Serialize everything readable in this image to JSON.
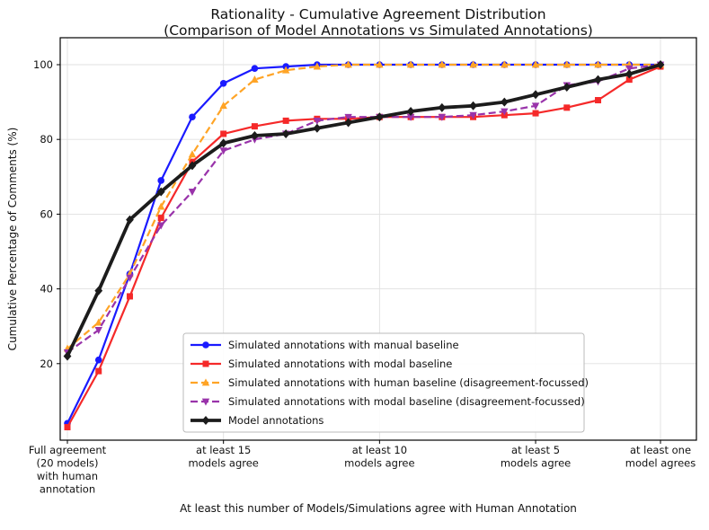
{
  "figure": {
    "title_line1": "Rationality - Cumulative Agreement Distribution",
    "title_line2": "(Comparison of Model Annotations vs Simulated Annotations)"
  },
  "axes": {
    "xlabel": "At least this number of Models/Simulations agree with Human Annotation",
    "ylabel": "Cumulative Percentage of Comments (%)",
    "yticks": [
      20,
      40,
      60,
      80,
      100
    ],
    "ylim": [
      0,
      105
    ],
    "grid": true,
    "xticks": [
      {
        "index": 0,
        "lines": [
          "Full agreement",
          "(20 models)",
          "with human",
          "annotation"
        ]
      },
      {
        "index": 5,
        "lines": [
          "at least 15",
          "models agree"
        ]
      },
      {
        "index": 10,
        "lines": [
          "at least 10",
          "models agree"
        ]
      },
      {
        "index": 15,
        "lines": [
          "at least 5",
          "models agree"
        ]
      },
      {
        "index": 19,
        "lines": [
          "at least one",
          "model agrees"
        ]
      }
    ]
  },
  "chart_data": {
    "type": "line",
    "x_meaning": "number of models/simulations agreeing with human annotation (cumulative, from 20 down to 1)",
    "x": [
      20,
      19,
      18,
      17,
      16,
      15,
      14,
      13,
      12,
      11,
      10,
      9,
      8,
      7,
      6,
      5,
      4,
      3,
      2,
      1
    ],
    "legend_position": "lower center-left inside axes",
    "series": [
      {
        "id": "manual-baseline",
        "name": "Simulated annotations with manual baseline",
        "color": "#1a1aff",
        "marker": "circle",
        "line_style": "solid",
        "line_width": 2.2,
        "values": [
          4,
          21,
          44,
          69,
          86,
          95,
          99,
          99.5,
          100,
          100,
          100,
          100,
          100,
          100,
          100,
          100,
          100,
          100,
          100,
          100
        ]
      },
      {
        "id": "modal-baseline",
        "name": "Simulated annotations with modal baseline",
        "color": "#f52929",
        "marker": "square",
        "line_style": "solid",
        "line_width": 2.2,
        "values": [
          3,
          18,
          38,
          59,
          74,
          81.5,
          83.5,
          85,
          85.5,
          85.5,
          86,
          86,
          86,
          86,
          86.5,
          87,
          88.5,
          90.5,
          96,
          99.5
        ]
      },
      {
        "id": "human-baseline-disagreement",
        "name": "Simulated annotations with human baseline (disagreement-focussed)",
        "color": "#ffa426",
        "marker": "triangle-up",
        "line_style": "dashed",
        "line_width": 2.2,
        "values": [
          24,
          31,
          44,
          62,
          76,
          89,
          96,
          98.5,
          99.5,
          100,
          100,
          100,
          100,
          100,
          100,
          100,
          100,
          100,
          100,
          100
        ]
      },
      {
        "id": "modal-baseline-disagreement",
        "name": "Simulated annotations with modal baseline (disagreement-focussed)",
        "color": "#9933aa",
        "marker": "triangle-down",
        "line_style": "dashed",
        "line_width": 2.2,
        "values": [
          23,
          29,
          43,
          57,
          66,
          77,
          80,
          81.5,
          85,
          86,
          86,
          86,
          86,
          86.5,
          87.5,
          89,
          94.5,
          95.5,
          99,
          100
        ]
      },
      {
        "id": "model-annotations",
        "name": "Model annotations",
        "color": "#1c1c1c",
        "marker": "diamond",
        "line_style": "solid",
        "line_width": 3.8,
        "values": [
          22,
          39.5,
          58.5,
          66,
          73,
          79,
          81,
          81.5,
          83,
          84.5,
          86,
          87.5,
          88.5,
          89,
          90,
          92,
          94,
          96,
          97.5,
          100
        ]
      }
    ]
  }
}
